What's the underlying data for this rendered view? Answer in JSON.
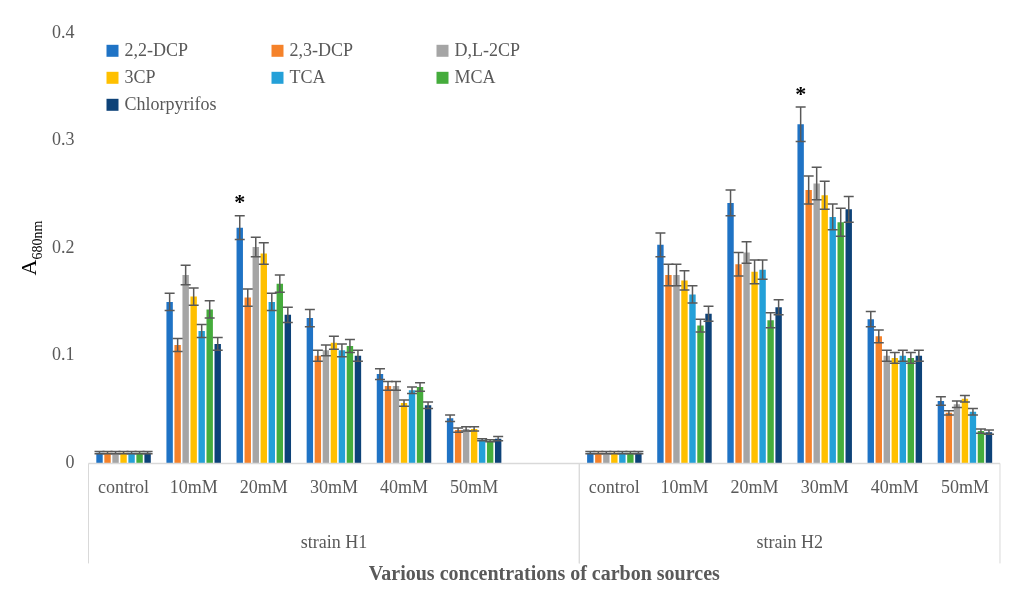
{
  "chart_data": {
    "type": "bar",
    "xlabel": "Various concentrations of carbon sources",
    "ylabel": "A$_{680nm}$",
    "categories": [
      "control",
      "10mM",
      "20mM",
      "30mM",
      "40mM",
      "50mM",
      null,
      "control",
      "10mM",
      "20mM",
      "30mM",
      "40mM",
      "50mM"
    ],
    "series": [
      {
        "name": "2,2-DCP",
        "color": "#1f73c5",
        "values": [
          0.01,
          0.15,
          0.219,
          0.135,
          0.083,
          0.042,
          null,
          0.01,
          0.203,
          0.242,
          0.315,
          0.134,
          0.058
        ],
        "errors": [
          0.001,
          0.008,
          0.011,
          0.008,
          0.005,
          0.003,
          null,
          0.001,
          0.011,
          0.012,
          0.016,
          0.007,
          0.004
        ]
      },
      {
        "name": "2,3-DCP",
        "color": "#f5822a",
        "values": [
          0.01,
          0.11,
          0.154,
          0.1,
          0.072,
          0.031,
          null,
          0.01,
          0.175,
          0.185,
          0.254,
          0.118,
          0.047
        ],
        "errors": [
          0.001,
          0.006,
          0.008,
          0.005,
          0.004,
          0.002,
          null,
          0.001,
          0.01,
          0.011,
          0.013,
          0.006,
          0.002
        ]
      },
      {
        "name": "D,L-2CP",
        "color": "#a5a5a5",
        "values": [
          0.01,
          0.175,
          0.201,
          0.105,
          0.072,
          0.032,
          null,
          0.01,
          0.175,
          0.196,
          0.26,
          0.1,
          0.055
        ],
        "errors": [
          0.001,
          0.009,
          0.009,
          0.005,
          0.004,
          0.002,
          null,
          0.001,
          0.01,
          0.01,
          0.015,
          0.005,
          0.003
        ]
      },
      {
        "name": "3CP",
        "color": "#ffc000",
        "values": [
          0.01,
          0.155,
          0.195,
          0.112,
          0.056,
          0.032,
          null,
          0.01,
          0.17,
          0.178,
          0.249,
          0.098,
          0.06
        ],
        "errors": [
          0.001,
          0.008,
          0.01,
          0.006,
          0.003,
          0.002,
          null,
          0.001,
          0.009,
          0.011,
          0.013,
          0.005,
          0.003
        ]
      },
      {
        "name": "TCA",
        "color": "#24a0d8",
        "values": [
          0.01,
          0.123,
          0.15,
          0.105,
          0.068,
          0.022,
          null,
          0.01,
          0.157,
          0.18,
          0.229,
          0.1,
          0.048
        ],
        "errors": [
          0.001,
          0.006,
          0.008,
          0.006,
          0.003,
          0.001,
          null,
          0.001,
          0.008,
          0.009,
          0.012,
          0.005,
          0.003
        ]
      },
      {
        "name": "MCA",
        "color": "#45ac3c",
        "values": [
          0.01,
          0.143,
          0.167,
          0.109,
          0.071,
          0.021,
          null,
          0.01,
          0.128,
          0.133,
          0.224,
          0.098,
          0.03
        ],
        "errors": [
          0.001,
          0.008,
          0.008,
          0.006,
          0.004,
          0.001,
          null,
          0.001,
          0.006,
          0.007,
          0.013,
          0.005,
          0.002
        ]
      },
      {
        "name": "Chlorpyrifos",
        "color": "#0d4278",
        "values": [
          0.01,
          0.111,
          0.138,
          0.1,
          0.054,
          0.023,
          null,
          0.01,
          0.139,
          0.145,
          0.236,
          0.1,
          0.029
        ],
        "errors": [
          0.001,
          0.006,
          0.007,
          0.005,
          0.003,
          0.002,
          null,
          0.001,
          0.007,
          0.007,
          0.012,
          0.005,
          0.002
        ]
      }
    ],
    "ylim": [
      0,
      0.4
    ],
    "yticks": [
      {
        "value": 0,
        "label": "0"
      },
      0.1,
      0.2,
      0.3,
      0.4
    ],
    "grid": false,
    "legend": "top left",
    "annotations": [
      "strain H1",
      "strain H2",
      "*",
      "*"
    ]
  }
}
